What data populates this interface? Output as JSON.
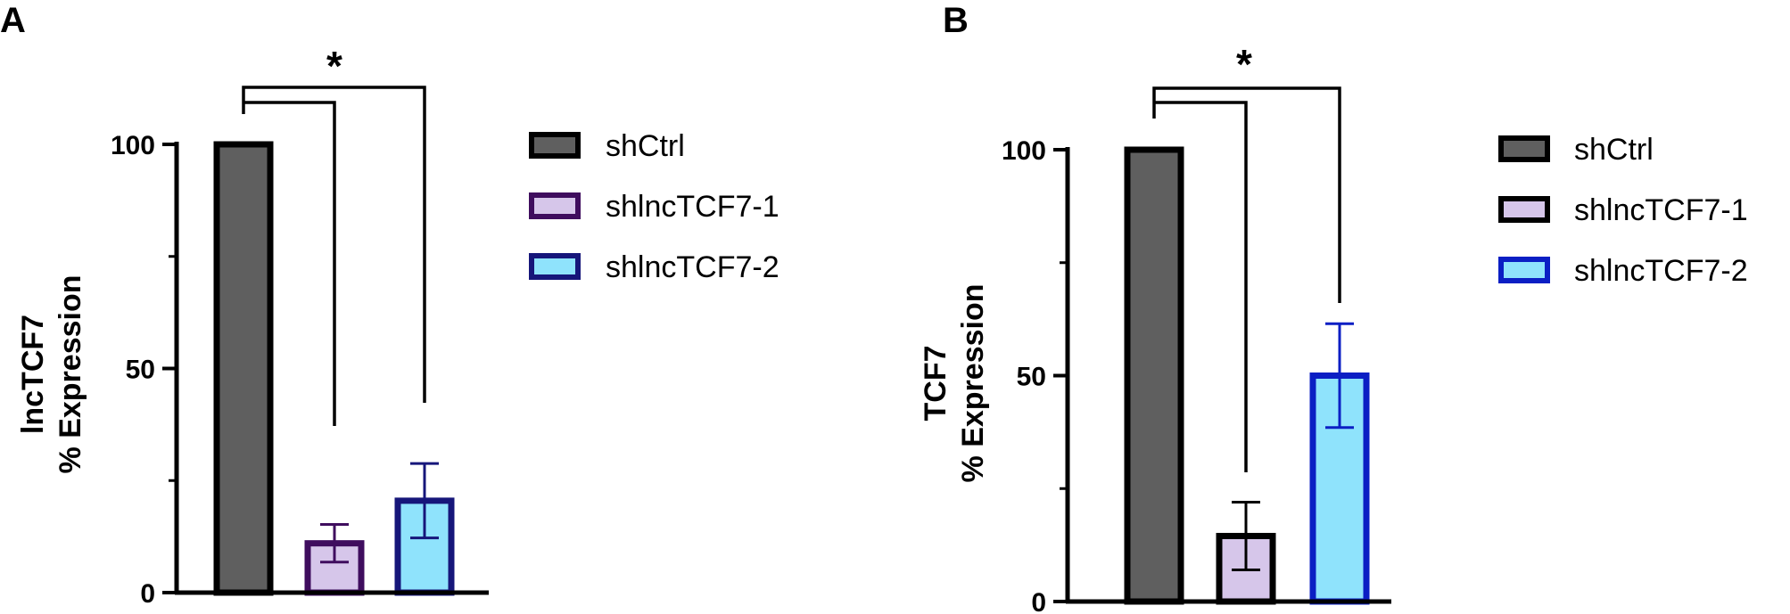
{
  "colors": {
    "shCtrl_fill": "#5f5f5f",
    "shCtrl_stroke": "#000000",
    "kd1_fill": "#d6c6ea",
    "kd2_fill": "#8fe3fc",
    "kd2_stroke_A": "#16167a",
    "kd2_stroke_B": "#0b1fc4",
    "kd1_stroke_A": "#3f0d5e",
    "kd1_stroke_B": "#000000",
    "err_kd1_A": "#3f0d5e",
    "err_kd2_A": "#16167a",
    "err_kd1_B": "#000000",
    "err_kd2_B": "#0b1fc4"
  },
  "chart_data": [
    {
      "panel": "A",
      "type": "bar",
      "categories": [
        "shCtrl",
        "shlncTCF7-1",
        "shlncTCF7-2"
      ],
      "values": [
        100,
        11,
        20.5
      ],
      "error": [
        0,
        4.2,
        8.3
      ],
      "ylabel_line1": "lncTCF7",
      "ylabel_line2": "% Expression",
      "yticks": [
        "0",
        "50",
        "100"
      ],
      "ylim": [
        0,
        100
      ],
      "significance": "*",
      "legend": [
        "shCtrl",
        "shlncTCF7-1",
        "shlncTCF7-2"
      ]
    },
    {
      "panel": "B",
      "type": "bar",
      "categories": [
        "shCtrl",
        "shlncTCF7-1",
        "shlncTCF7-2"
      ],
      "values": [
        100,
        14.5,
        50
      ],
      "error": [
        0,
        7.5,
        11.5
      ],
      "ylabel_line1": "TCF7",
      "ylabel_line2": "% Expression",
      "yticks": [
        "0",
        "50",
        "100"
      ],
      "ylim": [
        0,
        100
      ],
      "significance": "*",
      "legend": [
        "shCtrl",
        "shlncTCF7-1",
        "shlncTCF7-2"
      ]
    }
  ]
}
